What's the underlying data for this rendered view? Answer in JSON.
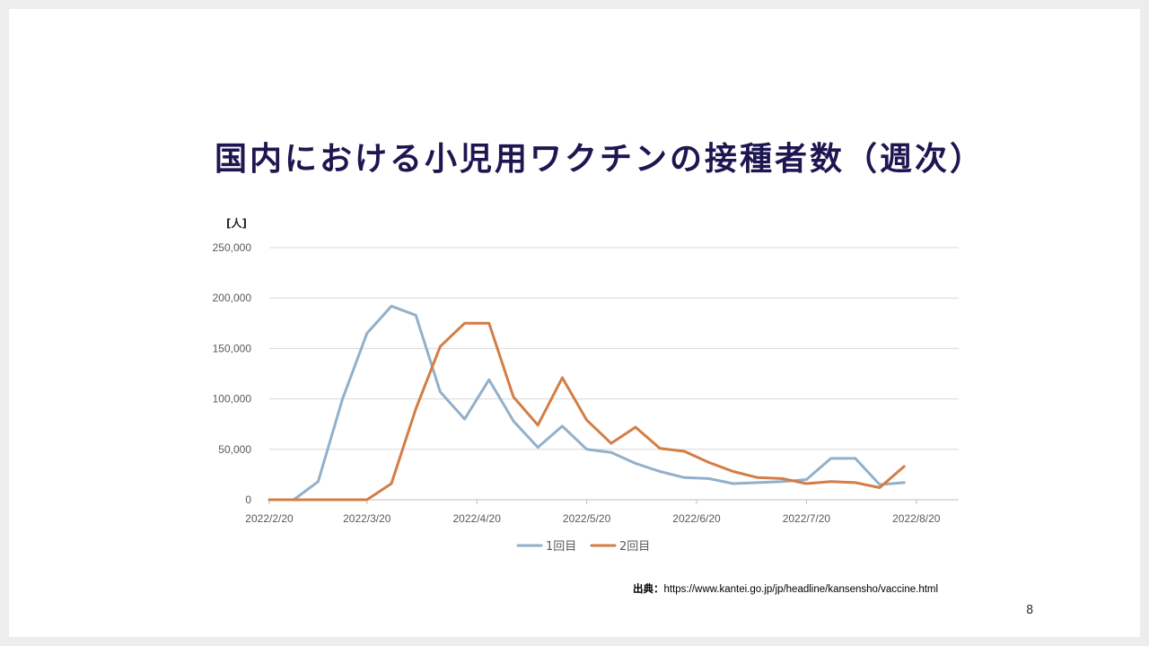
{
  "slide": {
    "title": "国内における小児用ワクチンの接種者数（週次）",
    "source_label": "出典：",
    "source_url": "https://www.kantei.go.jp/jp/headline/kansensho/vaccine.html",
    "page_number": "8"
  },
  "chart_data": {
    "type": "line",
    "title": "",
    "ylabel": "[人]",
    "xlabel": "",
    "ylim": [
      0,
      250000
    ],
    "yticks": [
      0,
      50000,
      100000,
      150000,
      200000,
      250000
    ],
    "ytick_labels": [
      "0",
      "50,000",
      "100,000",
      "150,000",
      "200,000",
      "250,000"
    ],
    "x_tick_labels": [
      "2022/2/20",
      "2022/3/20",
      "2022/4/20",
      "2022/5/20",
      "2022/6/20",
      "2022/7/20",
      "2022/8/20"
    ],
    "x_tick_index": [
      0,
      4,
      8.5,
      13,
      17.5,
      22,
      26.5
    ],
    "legend_position": "bottom",
    "grid": "horizontal",
    "series": [
      {
        "name": "1回目",
        "color": "#92b0ca",
        "values": [
          0,
          0,
          18000,
          100000,
          165000,
          192000,
          183000,
          107000,
          80000,
          119000,
          78000,
          52000,
          73000,
          50000,
          47000,
          36000,
          28000,
          22000,
          21000,
          16000,
          17000,
          18000,
          20000,
          41000,
          41000,
          15000,
          17000
        ]
      },
      {
        "name": "2回目",
        "color": "#d47d44",
        "values": [
          0,
          0,
          0,
          0,
          0,
          16000,
          90000,
          152000,
          175000,
          175000,
          102000,
          74000,
          121000,
          79000,
          56000,
          72000,
          51000,
          48000,
          37000,
          28000,
          22000,
          21000,
          16000,
          18000,
          17000,
          12000,
          33000
        ]
      }
    ]
  }
}
